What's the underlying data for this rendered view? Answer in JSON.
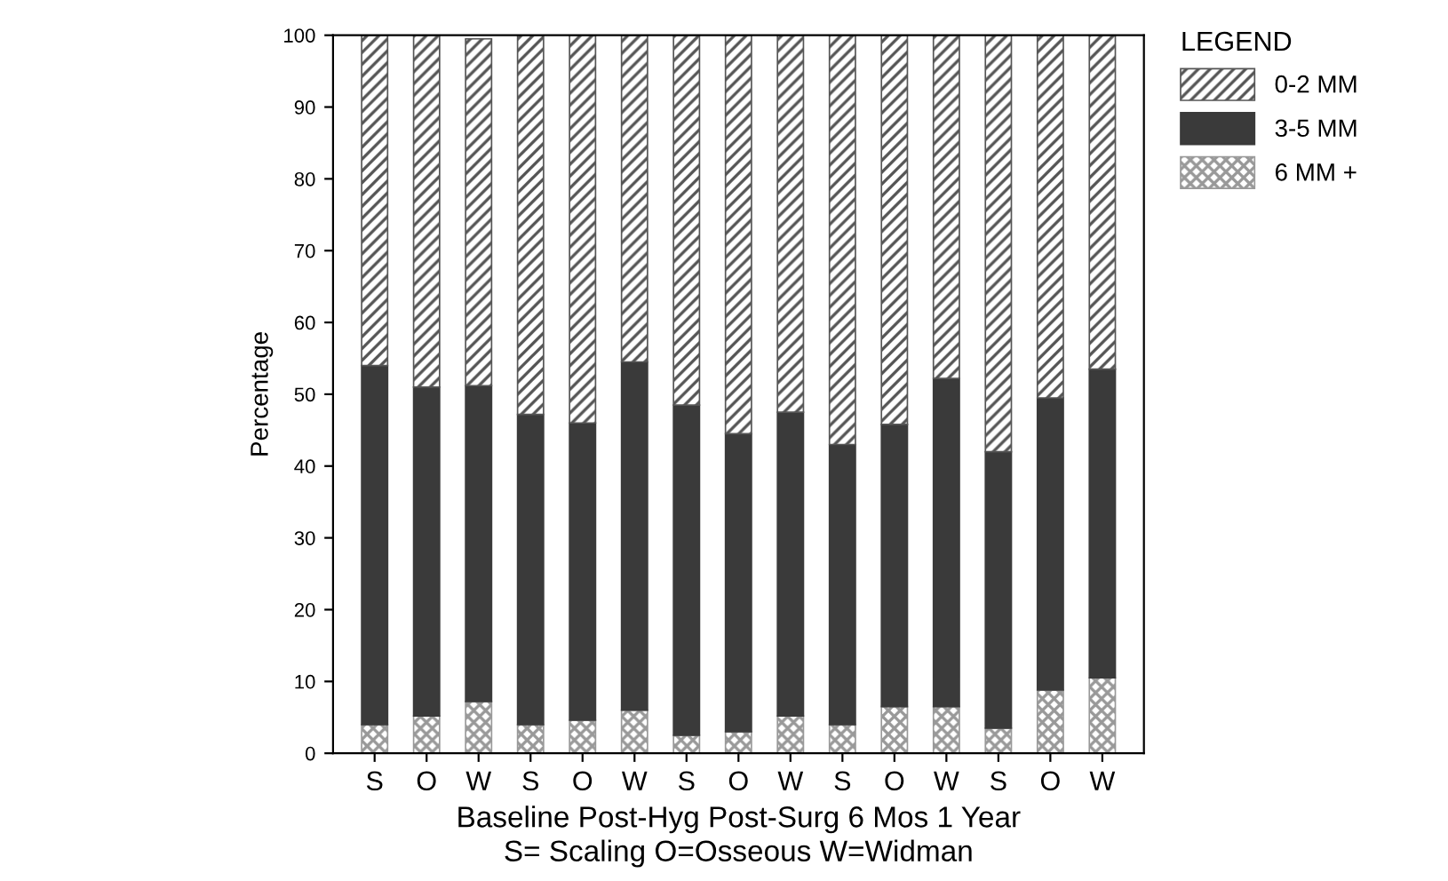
{
  "chart_data": {
    "type": "bar",
    "stacked": true,
    "ylabel": "Percentage",
    "xlabel": "Baseline Post-Hyg Post-Surg 6 Mos 1 Year\nS= Scaling O=Osseous W=Widman",
    "categories": [
      "S",
      "O",
      "W",
      "S",
      "O",
      "W",
      "S",
      "O",
      "W",
      "S",
      "O",
      "W",
      "S",
      "O",
      "W"
    ],
    "series": [
      {
        "name": "6 MM +",
        "color": "#999999",
        "values": [
          4,
          5.2,
          7.2,
          4,
          4.6,
          6,
          2.5,
          3,
          5.2,
          4,
          6.5,
          6.5,
          3.5,
          8.8,
          10.5
        ]
      },
      {
        "name": "3-5 MM",
        "color": "#3a3a3a",
        "values": [
          50,
          45.8,
          44,
          43.2,
          41.4,
          48.5,
          46,
          41.5,
          42.3,
          39,
          39.3,
          45.7,
          38.5,
          40.7,
          43
        ]
      },
      {
        "name": "0-2 MM",
        "color": "#555555",
        "values": [
          46,
          49,
          48.3,
          52.8,
          54,
          45.5,
          51.5,
          55.5,
          52.5,
          57,
          54.2,
          47.8,
          58,
          50.5,
          46.5
        ]
      }
    ],
    "ylim": [
      0,
      100
    ],
    "yticks": [
      0,
      10,
      20,
      30,
      40,
      50,
      60,
      70,
      80,
      90,
      100
    ],
    "grid": false,
    "legend": "top right",
    "legend_title": "LEGEND"
  }
}
